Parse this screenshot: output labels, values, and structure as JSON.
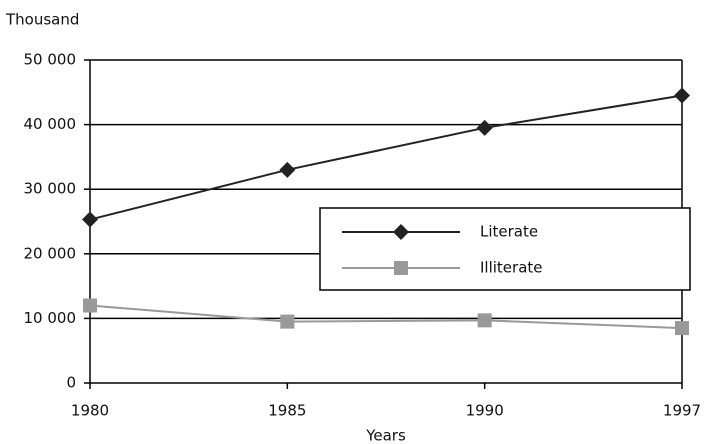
{
  "chart_data": {
    "type": "line",
    "y_label": "Thousand",
    "x_label": "Years",
    "categories": [
      "1980",
      "1985",
      "1990",
      "1997"
    ],
    "series": [
      {
        "name": "Literate",
        "color": "#222222",
        "marker": "diamond",
        "values": [
          25300,
          33000,
          39500,
          44500
        ]
      },
      {
        "name": "Illiterate",
        "color": "#999999",
        "marker": "square",
        "values": [
          12000,
          9500,
          9700,
          8500
        ]
      }
    ],
    "ylim": [
      0,
      50000
    ],
    "yticks": [
      0,
      {
        "value": 10000,
        "label": "10 000"
      },
      {
        "value": 20000,
        "label": "20 000"
      },
      {
        "value": 30000,
        "label": "30 000"
      },
      {
        "value": 40000,
        "label": "40 000"
      },
      {
        "value": 50000,
        "label": "50 000"
      }
    ],
    "grid": true
  }
}
